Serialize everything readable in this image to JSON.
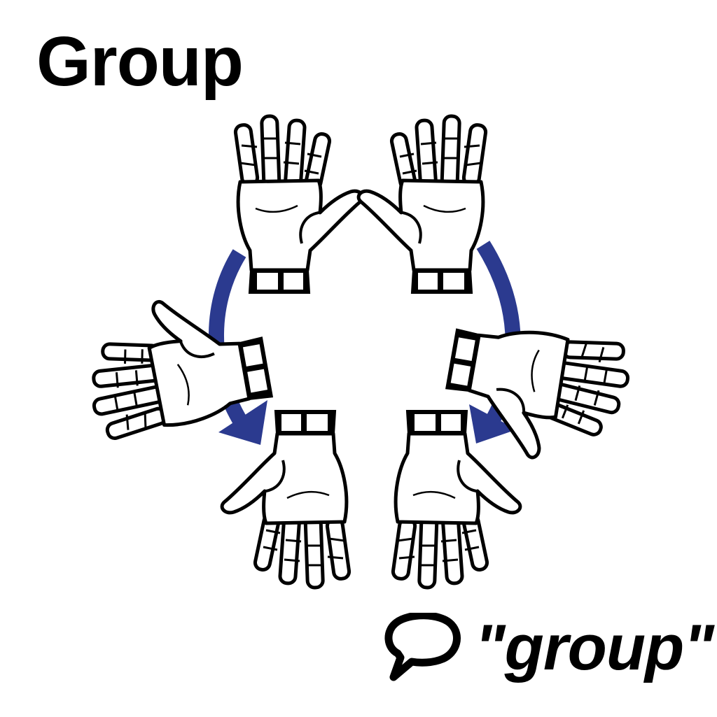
{
  "title": "Group",
  "caption": {
    "icon": "speech-bubble-icon",
    "text": "\"group\""
  },
  "colors": {
    "arrow": "#2b3a8f",
    "ink": "#000000",
    "glove": "#ffffff"
  },
  "hands": [
    {
      "id": "left-top",
      "icon": "open-palm-icon",
      "fingers": "up"
    },
    {
      "id": "left-middle",
      "icon": "open-palm-icon",
      "fingers": "left"
    },
    {
      "id": "left-bottom",
      "icon": "open-palm-icon",
      "fingers": "down"
    },
    {
      "id": "right-top",
      "icon": "open-palm-icon",
      "fingers": "up"
    },
    {
      "id": "right-middle",
      "icon": "open-palm-icon",
      "fingers": "right"
    },
    {
      "id": "right-bottom",
      "icon": "open-palm-icon",
      "fingers": "down"
    }
  ],
  "arrows": [
    {
      "id": "left-arc",
      "icon": "curved-arrow-icon",
      "direction": "down"
    },
    {
      "id": "right-arc",
      "icon": "curved-arrow-icon",
      "direction": "down"
    }
  ]
}
